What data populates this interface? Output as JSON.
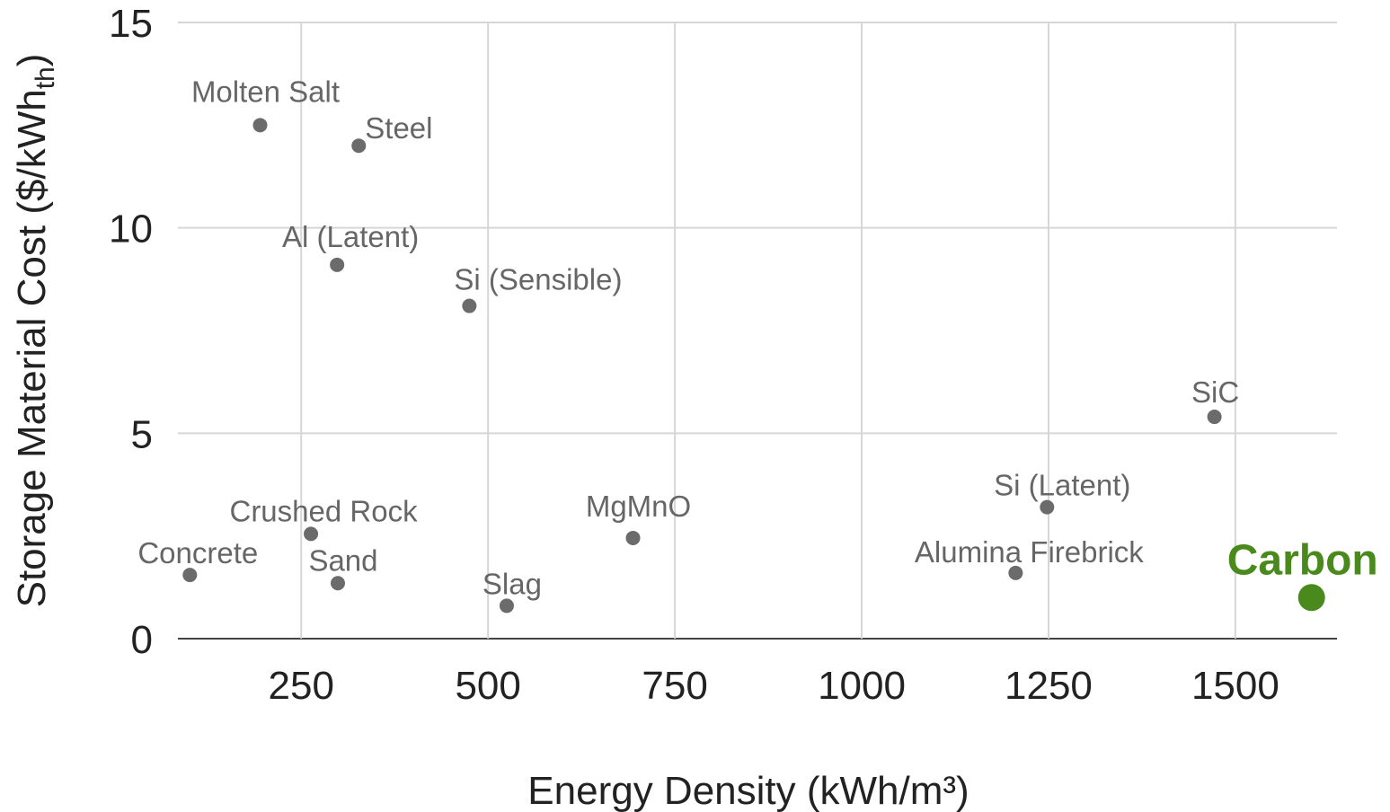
{
  "chart_data": {
    "type": "scatter",
    "title": "",
    "xlabel": "Energy Density (kWh/m³)",
    "ylabel": "Storage Material Cost ($/kWh",
    "ylabel_sub": "th",
    "ylabel_close": ")",
    "xlim": [
      85,
      1636
    ],
    "ylim": [
      0,
      15
    ],
    "xticks": [
      250,
      500,
      750,
      1000,
      1250,
      1500
    ],
    "yticks": [
      0,
      5,
      10,
      15
    ],
    "grid": true,
    "colors": {
      "default": "#6b6b6b",
      "highlight": "#4a8a1c"
    },
    "points": [
      {
        "label": "Molten Salt",
        "x": 195,
        "y": 12.5
      },
      {
        "label": "Steel",
        "x": 327,
        "y": 12.0
      },
      {
        "label": "Al (Latent)",
        "x": 298,
        "y": 9.1
      },
      {
        "label": "Si (Sensible)",
        "x": 475,
        "y": 8.1
      },
      {
        "label": "SiC",
        "x": 1472,
        "y": 5.4
      },
      {
        "label": "Si (Latent)",
        "x": 1248,
        "y": 3.2
      },
      {
        "label": "MgMnO",
        "x": 694,
        "y": 2.45
      },
      {
        "label": "Crushed Rock",
        "x": 263,
        "y": 2.55
      },
      {
        "label": "Concrete",
        "x": 101,
        "y": 1.55
      },
      {
        "label": "Sand",
        "x": 299,
        "y": 1.35
      },
      {
        "label": "Slag",
        "x": 525,
        "y": 0.8
      },
      {
        "label": "Alumina Firebrick",
        "x": 1206,
        "y": 1.6
      },
      {
        "label": "Carbon",
        "x": 1602,
        "y": 1.0,
        "highlight": true
      }
    ]
  }
}
